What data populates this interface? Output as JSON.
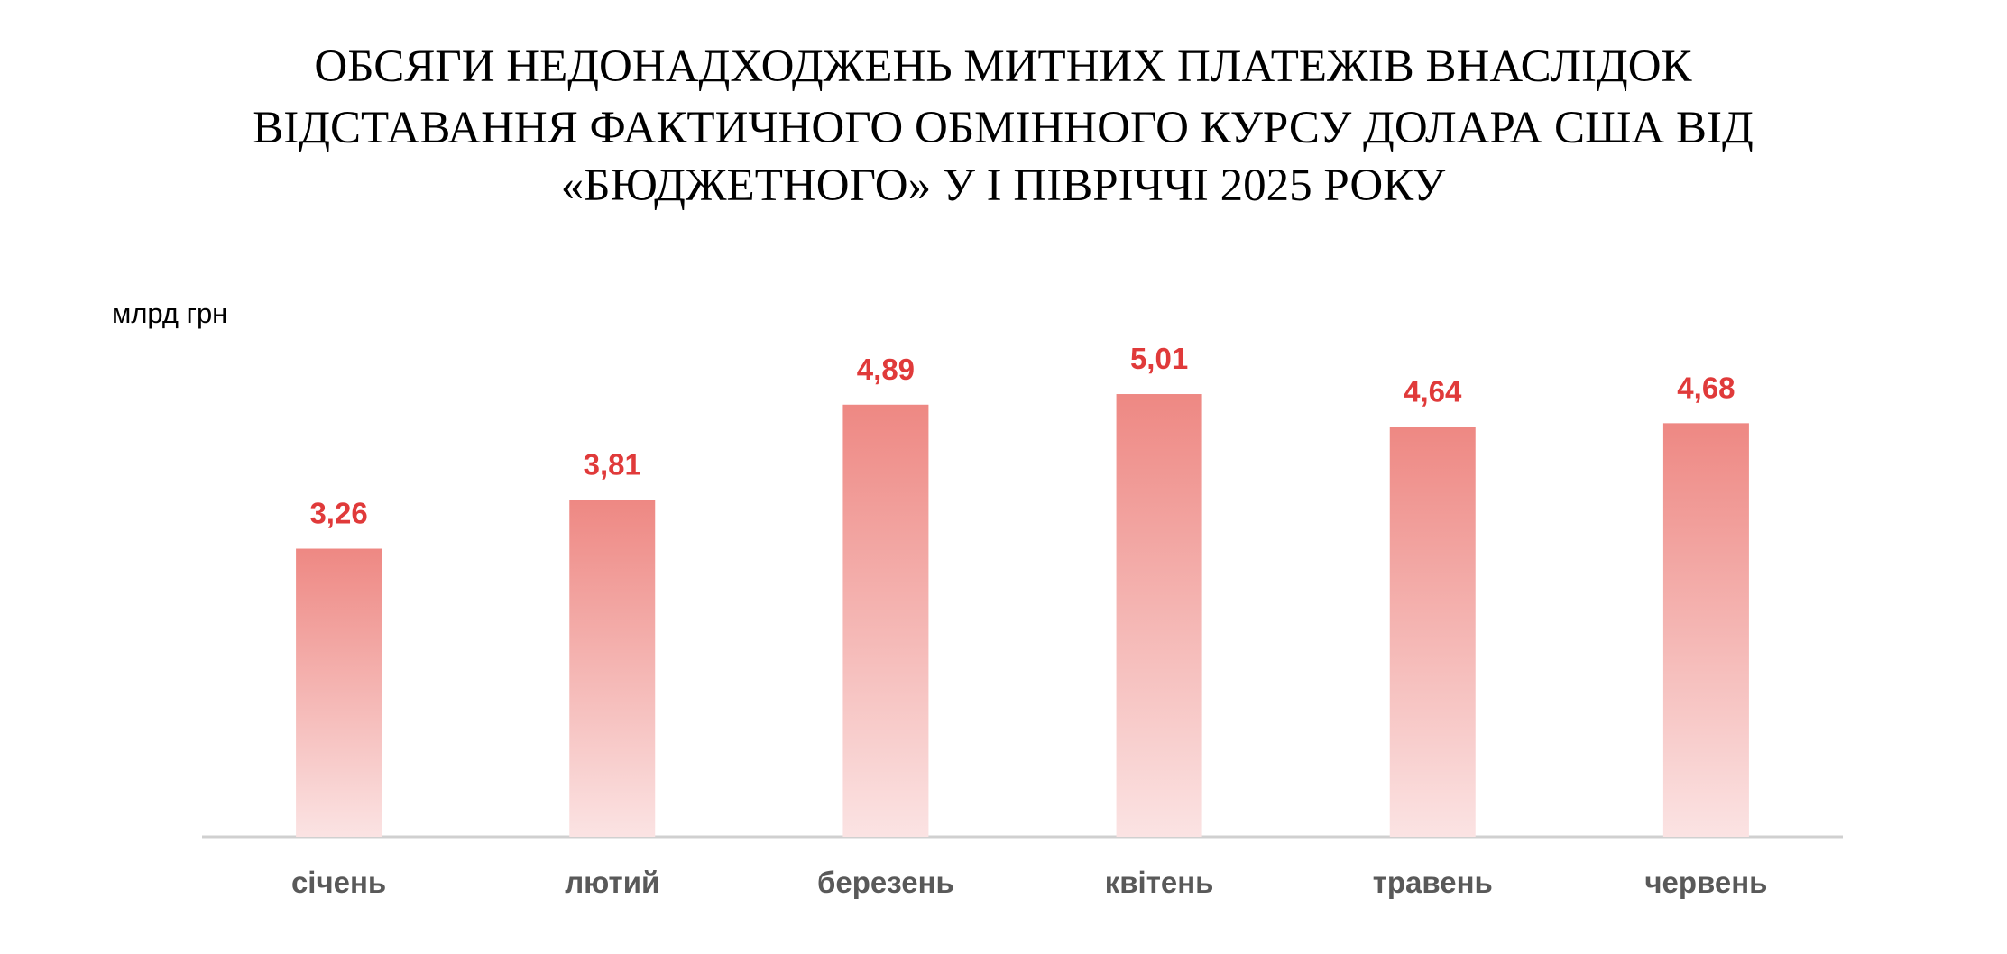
{
  "chart_data": {
    "type": "bar",
    "title": [
      "ОБСЯГИ НЕДОНАДХОДЖЕНЬ МИТНИХ ПЛАТЕЖІВ ВНАСЛІДОК",
      "ВІДСТАВАННЯ ФАКТИЧНОГО ОБМІННОГО КУРСУ ДОЛАРА США ВІД",
      "«БЮДЖЕТНОГО» У І ПІВРІЧЧІ 2025 РОКУ"
    ],
    "y_label": "млрд грн",
    "categories": [
      "січень",
      "лютий",
      "березень",
      "квітень",
      "травень",
      "червень"
    ],
    "values": [
      3.26,
      3.81,
      4.89,
      5.01,
      4.64,
      4.68
    ],
    "value_labels": [
      "3,26",
      "3,81",
      "4,89",
      "5,01",
      "4,64",
      "4,68"
    ],
    "color": "#ee8883",
    "ylim": [
      0,
      7
    ]
  }
}
